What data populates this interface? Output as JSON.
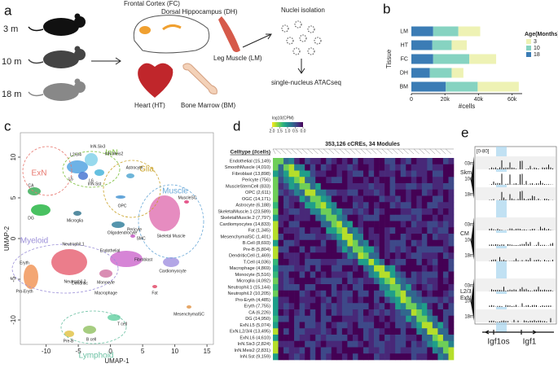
{
  "panels": [
    "a",
    "b",
    "c",
    "d",
    "e"
  ],
  "schematic": {
    "ages": [
      "3 m",
      "10 m",
      "18 m"
    ],
    "tissues": [
      "Frontal Cortex (FC)",
      "Dorsal Hippocampus (DH)",
      "Leg Muscle (LM)",
      "Heart (HT)",
      "Bone Marrow (BM)"
    ],
    "steps": [
      "Nuclei isolation",
      "single-nucleus ATACseq"
    ]
  },
  "chart_data": [
    {
      "type": "bar",
      "orientation": "horizontal",
      "stacked": true,
      "categories": [
        "LM",
        "HT",
        "FC",
        "DH",
        "BM"
      ],
      "series": [
        {
          "name": "3",
          "color": "#eef2b4",
          "values": [
            13000,
            9000,
            16000,
            7000,
            24500
          ]
        },
        {
          "name": "10",
          "color": "#86d3c1",
          "values": [
            15000,
            11500,
            21500,
            13000,
            19000
          ]
        },
        {
          "name": "18",
          "color": "#3b7cb5",
          "values": [
            13000,
            12500,
            13000,
            11000,
            20500
          ]
        }
      ],
      "xlabel": "#cells",
      "ylabel": "Tissue",
      "legend_title": "Age(Months)",
      "legend": "right",
      "xlim": [
        0,
        66000
      ],
      "xticks": [
        0,
        {
          "value": 20000,
          "label": "20k"
        },
        {
          "value": 40000,
          "label": "40k"
        },
        {
          "value": 60000,
          "label": "60k"
        }
      ]
    },
    {
      "type": "scatter",
      "xlabel": "UMAP-1",
      "ylabel": "UMAP-2",
      "xlim": [
        -14,
        16
      ],
      "ylim": [
        -13,
        13
      ],
      "xticks": [
        -10,
        -5,
        0,
        5,
        10,
        15
      ],
      "yticks": [
        -10,
        -5,
        0,
        5,
        10
      ],
      "groups": [
        {
          "name": "ExN",
          "color": "#e8776e"
        },
        {
          "name": "InN",
          "color": "#7bbf3a"
        },
        {
          "name": "Glia",
          "color": "#c9a227"
        },
        {
          "name": "Muscle",
          "color": "#6aa9d8"
        },
        {
          "name": "Myeloid",
          "color": "#9b8fd8"
        },
        {
          "name": "Lymphoid",
          "color": "#6cc1a3"
        }
      ],
      "annotations": [
        "L2/3/4",
        "InN.Six3",
        "InN.Meis2",
        "L5",
        "L6",
        "InN.Sst",
        "CA",
        "DG",
        "Astrocyte",
        "OPC",
        "Microglia",
        "Oligodendrocyte",
        "Pericyte",
        "SMC",
        "MuscleSC",
        "Skeletal Muscle",
        "Endothelial",
        "Fibroblast",
        "Eryth",
        "Neutrophil.1",
        "Neutrophil.2",
        "Pro-Eryth",
        "Dendritic",
        "Monocyte",
        "Macrophage",
        "Cardiomyocyte",
        "Fat",
        "MesenchymalSC",
        "T cell",
        "Pre-B",
        "B cell"
      ]
    }
  ],
  "heatmap": {
    "title": "353,126 cCREs, 34 Modules",
    "colorbar": {
      "label": "log10(CPM)",
      "lim": [
        0,
        2
      ],
      "ticks": [
        {
          "value": 2,
          "label": "2.0"
        },
        {
          "value": 1.5,
          "label": "1.5"
        },
        {
          "value": 1,
          "label": "1.0"
        },
        {
          "value": 0.5,
          "label": "0.5"
        },
        {
          "value": 0,
          "label": "0.0"
        }
      ]
    },
    "row_header": "Celltype (#cells)",
    "rows": [
      "Endothelial (15,149)",
      "SmoothMuscle (4,010)",
      "Fibroblast (13,898)",
      "Pericyte (756)",
      "MuscleStemCell (833)",
      "OPC (2,611)",
      "OGC (14,171)",
      "Astrocyte (6,188)",
      "SkeletalMuscle.1 (23,589)",
      "SkeletalMuscle.2 (7,797)",
      "Cardiomyocytes (14,833)",
      "Fat (1,345)",
      "MesenchymalSC (1,401)",
      "B.Cell (8,693)",
      "Pre-B (5,804)",
      "DendriticCell (1,469)",
      "T.Cell (4,036)",
      "Macrophage (4,869)",
      "Monocyte (5,516)",
      "Microglia (4,092)",
      "Neutrophil.1 (15,144)",
      "Neutrophil.2 (10,205)",
      "Pro-Eryth (4,485)",
      "Eryth (7,755)",
      "CA (6,226)",
      "DG (14,950)",
      "ExN.L5 (5,074)",
      "ExN.L2/3/4 (13,495)",
      "ExN.L6 (4,610)",
      "InN.Six3 (2,824)",
      "InN.Meis2 (2,831)",
      "InN.Sst (9,159)"
    ]
  },
  "tracks": {
    "range": "[0-80]",
    "groups": [
      [
        "Skm"
      ],
      [
        "CM"
      ],
      [
        "L2/3",
        "ExN"
      ]
    ],
    "ages": [
      "03m",
      "10m",
      "18m"
    ],
    "genes": [
      "Igf1os",
      "Igf1"
    ]
  }
}
